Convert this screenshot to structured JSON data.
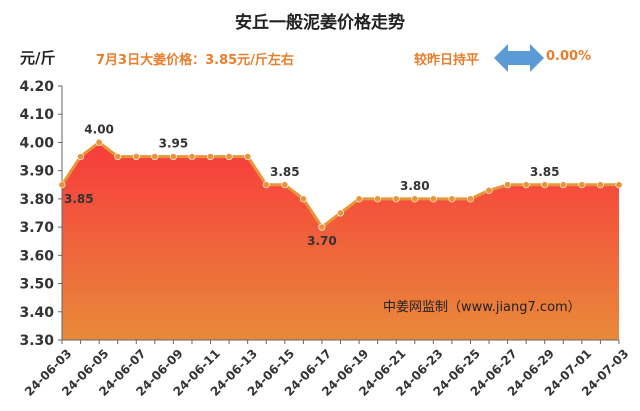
{
  "header": {
    "title": "安丘一般泥姜价格走势",
    "unit": "元/斤",
    "price_note": "7月3日大姜价格：3.85元/斤左右",
    "change_label": "较昨日持平",
    "change_value": "0.00%",
    "change_icon": "left-right-arrow-icon",
    "change_icon_color": "#5b9bd5"
  },
  "watermark": "中姜网监制（www.jiang7.com）",
  "colors": {
    "line": "#e8953a",
    "marker": "#e8953a",
    "fill_top": "#f83a3c",
    "fill_bottom": "#e88a3a",
    "text_accent": "#e87d2c"
  },
  "chart_data": {
    "type": "area",
    "title": "安丘一般泥姜价格走势",
    "ylabel": "元/斤",
    "xlabel": "",
    "ylim": [
      3.3,
      4.2
    ],
    "yticks": [
      "4.20",
      "4.10",
      "4.00",
      "3.90",
      "3.80",
      "3.70",
      "3.60",
      "3.50",
      "3.40",
      "3.30"
    ],
    "grid": false,
    "x": [
      "24-06-03",
      "24-06-04",
      "24-06-05",
      "24-06-06",
      "24-06-07",
      "24-06-08",
      "24-06-09",
      "24-06-10",
      "24-06-11",
      "24-06-12",
      "24-06-13",
      "24-06-14",
      "24-06-15",
      "24-06-16",
      "24-06-17",
      "24-06-18",
      "24-06-19",
      "24-06-20",
      "24-06-21",
      "24-06-22",
      "24-06-23",
      "24-06-24",
      "24-06-25",
      "24-06-26",
      "24-06-27",
      "24-06-28",
      "24-06-29",
      "24-06-30",
      "24-07-01",
      "24-07-02",
      "24-07-03"
    ],
    "xtick_labels": [
      "24-06-03",
      "24-06-05",
      "24-06-07",
      "24-06-09",
      "24-06-11",
      "24-06-13",
      "24-06-15",
      "24-06-17",
      "24-06-19",
      "24-06-21",
      "24-06-23",
      "24-06-25",
      "24-06-27",
      "24-06-29",
      "24-07-01",
      "24-07-03"
    ],
    "values": [
      3.85,
      3.95,
      4.0,
      3.95,
      3.95,
      3.95,
      3.95,
      3.95,
      3.95,
      3.95,
      3.95,
      3.85,
      3.85,
      3.8,
      3.7,
      3.75,
      3.8,
      3.8,
      3.8,
      3.8,
      3.8,
      3.8,
      3.8,
      3.83,
      3.85,
      3.85,
      3.85,
      3.85,
      3.85,
      3.85,
      3.85
    ],
    "data_labels": [
      {
        "index": 0,
        "text": "3.85",
        "position": "below"
      },
      {
        "index": 2,
        "text": "4.00",
        "position": "above"
      },
      {
        "index": 6,
        "text": "3.95",
        "position": "above"
      },
      {
        "index": 12,
        "text": "3.85",
        "position": "above"
      },
      {
        "index": 14,
        "text": "3.70",
        "position": "below"
      },
      {
        "index": 19,
        "text": "3.80",
        "position": "above"
      },
      {
        "index": 26,
        "text": "3.85",
        "position": "above"
      }
    ]
  }
}
